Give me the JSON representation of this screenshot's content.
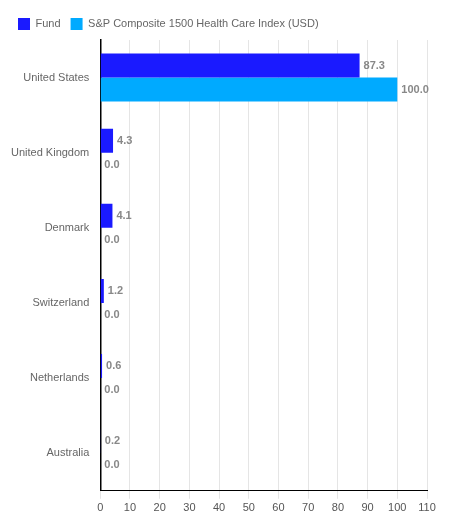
{
  "chart_data": {
    "type": "bar",
    "orientation": "horizontal",
    "categories": [
      "Australia",
      "Netherlands",
      "Switzerland",
      "Denmark",
      "United Kingdom",
      "United States"
    ],
    "series": [
      {
        "name": "Fund",
        "color": "#1a1aff",
        "values": [
          0.2,
          0.6,
          1.2,
          4.1,
          4.3,
          87.3
        ]
      },
      {
        "name": "S&P Composite 1500 Health Care Index (USD)",
        "color": "#00AAFF",
        "values": [
          0.0,
          0.0,
          0.0,
          0.0,
          0.0,
          100.0
        ],
        "value_labels": [
          "0.0",
          "0.0",
          "0.0",
          "0.0",
          "0.0",
          "100.0"
        ]
      }
    ],
    "xlim": [
      0,
      110
    ],
    "xticks": [
      0,
      10,
      20,
      30,
      40,
      50,
      60,
      70,
      80,
      90,
      100,
      110
    ],
    "grid": true,
    "legend": "upper left",
    "data_labels": true
  }
}
